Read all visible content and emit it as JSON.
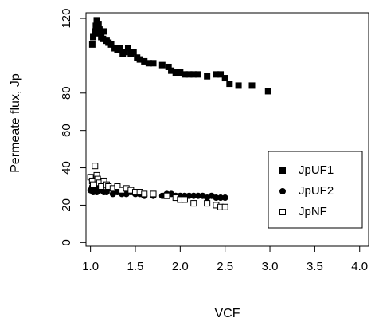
{
  "chart_data": {
    "type": "scatter",
    "title": "",
    "xlabel": "VCF",
    "ylabel": "Permeate flux, Jp",
    "xlim": [
      0.95,
      4.1
    ],
    "ylim": [
      -2,
      123
    ],
    "xticks": [
      1.0,
      1.5,
      2.0,
      2.5,
      3.0,
      3.5,
      4.0
    ],
    "xtick_labels": [
      "1.0",
      "1.5",
      "2.0",
      "2.5",
      "3.0",
      "3.5",
      "4.0"
    ],
    "yticks": [
      0,
      20,
      40,
      60,
      80,
      120
    ],
    "ytick_labels": [
      "0",
      "20",
      "40",
      "60",
      "80",
      "120"
    ],
    "grid": false,
    "legend_position": "bottom-right",
    "series": [
      {
        "name": "JpUF1",
        "marker": "filled-square",
        "color": "#000000",
        "points": [
          [
            1.02,
            106
          ],
          [
            1.03,
            110
          ],
          [
            1.05,
            113
          ],
          [
            1.06,
            116
          ],
          [
            1.07,
            119
          ],
          [
            1.08,
            112
          ],
          [
            1.09,
            117
          ],
          [
            1.1,
            114
          ],
          [
            1.12,
            110
          ],
          [
            1.14,
            109
          ],
          [
            1.15,
            113
          ],
          [
            1.18,
            108
          ],
          [
            1.2,
            107
          ],
          [
            1.23,
            106
          ],
          [
            1.27,
            104
          ],
          [
            1.3,
            103
          ],
          [
            1.33,
            104
          ],
          [
            1.36,
            101
          ],
          [
            1.38,
            102
          ],
          [
            1.42,
            104
          ],
          [
            1.45,
            101
          ],
          [
            1.48,
            102
          ],
          [
            1.52,
            99
          ],
          [
            1.55,
            98
          ],
          [
            1.6,
            97
          ],
          [
            1.65,
            96
          ],
          [
            1.7,
            96
          ],
          [
            1.8,
            95
          ],
          [
            1.87,
            94
          ],
          [
            1.9,
            92
          ],
          [
            1.95,
            91
          ],
          [
            2.0,
            91
          ],
          [
            2.05,
            90
          ],
          [
            2.1,
            90
          ],
          [
            2.15,
            90
          ],
          [
            2.2,
            90
          ],
          [
            2.3,
            89
          ],
          [
            2.4,
            90
          ],
          [
            2.45,
            90
          ],
          [
            2.5,
            88
          ],
          [
            2.55,
            85
          ],
          [
            2.65,
            84
          ],
          [
            2.8,
            84
          ],
          [
            2.98,
            81
          ]
        ]
      },
      {
        "name": "JpUF2",
        "marker": "filled-circle",
        "color": "#000000",
        "points": [
          [
            1.0,
            28
          ],
          [
            1.02,
            30
          ],
          [
            1.03,
            27
          ],
          [
            1.05,
            29
          ],
          [
            1.07,
            27
          ],
          [
            1.08,
            31
          ],
          [
            1.1,
            28
          ],
          [
            1.12,
            28
          ],
          [
            1.15,
            27
          ],
          [
            1.18,
            27
          ],
          [
            1.2,
            29
          ],
          [
            1.25,
            26
          ],
          [
            1.3,
            27
          ],
          [
            1.35,
            26
          ],
          [
            1.4,
            26
          ],
          [
            1.45,
            27
          ],
          [
            1.5,
            26
          ],
          [
            1.55,
            26
          ],
          [
            1.6,
            25
          ],
          [
            1.7,
            25
          ],
          [
            1.8,
            25
          ],
          [
            1.85,
            26
          ],
          [
            1.9,
            26
          ],
          [
            1.95,
            25
          ],
          [
            2.0,
            25
          ],
          [
            2.05,
            25
          ],
          [
            2.1,
            25
          ],
          [
            2.15,
            25
          ],
          [
            2.2,
            25
          ],
          [
            2.25,
            25
          ],
          [
            2.3,
            24
          ],
          [
            2.35,
            25
          ],
          [
            2.4,
            24
          ],
          [
            2.45,
            24
          ],
          [
            2.5,
            24
          ]
        ]
      },
      {
        "name": "JpNF",
        "marker": "open-square",
        "color": "#000000",
        "points": [
          [
            1.0,
            35
          ],
          [
            1.02,
            33
          ],
          [
            1.03,
            31
          ],
          [
            1.05,
            41
          ],
          [
            1.07,
            36
          ],
          [
            1.08,
            34
          ],
          [
            1.1,
            32
          ],
          [
            1.12,
            30
          ],
          [
            1.15,
            33
          ],
          [
            1.18,
            31
          ],
          [
            1.2,
            30
          ],
          [
            1.25,
            29
          ],
          [
            1.3,
            30
          ],
          [
            1.35,
            28
          ],
          [
            1.4,
            29
          ],
          [
            1.45,
            28
          ],
          [
            1.5,
            27
          ],
          [
            1.55,
            27
          ],
          [
            1.6,
            26
          ],
          [
            1.7,
            26
          ],
          [
            1.85,
            25
          ],
          [
            1.95,
            24
          ],
          [
            2.0,
            23
          ],
          [
            2.05,
            23
          ],
          [
            2.15,
            21
          ],
          [
            2.3,
            21
          ],
          [
            2.4,
            20
          ],
          [
            2.45,
            19
          ],
          [
            2.5,
            19
          ]
        ]
      }
    ]
  }
}
